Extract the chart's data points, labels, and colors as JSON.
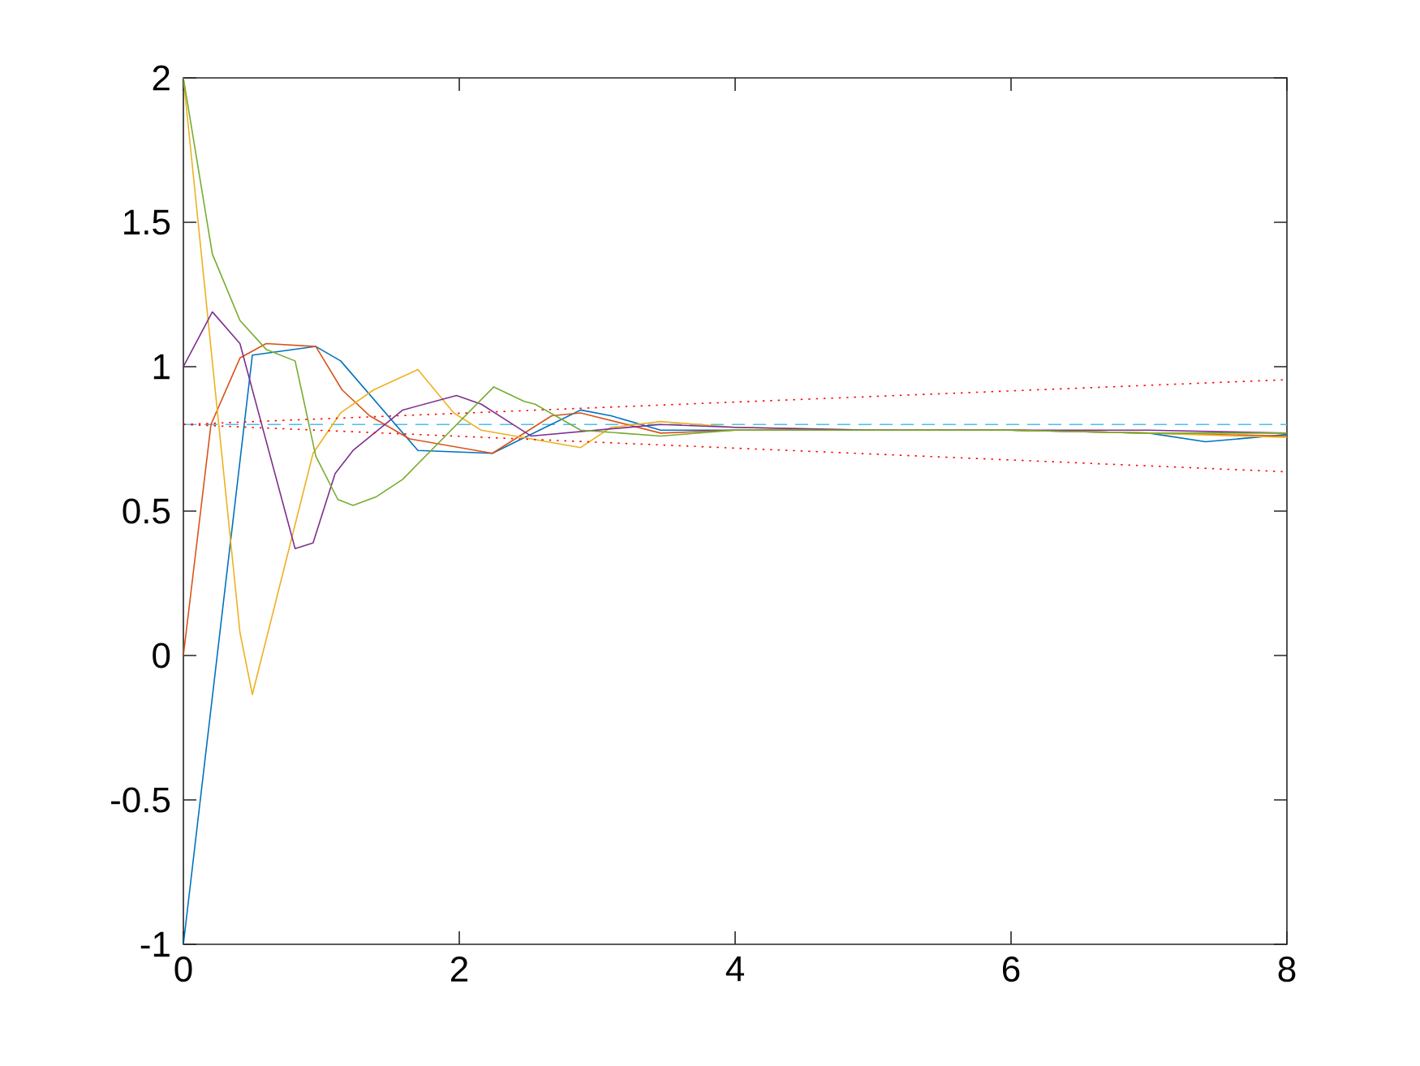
{
  "chart_data": {
    "type": "line",
    "xlim": [
      0,
      8
    ],
    "ylim": [
      -1,
      2
    ],
    "xticks": [
      0,
      2,
      4,
      6,
      8
    ],
    "yticks": [
      -1,
      -0.5,
      0,
      0.5,
      1,
      1.5,
      2
    ],
    "grid": false,
    "marker": "none",
    "series": [
      {
        "color": "#0072bd",
        "x": [
          0,
          0.5,
          0.96,
          1.14,
          1.7,
          2.24,
          2.88,
          3.1,
          3.46,
          4,
          5,
          6,
          7,
          7.41,
          8
        ],
        "values": [
          -1,
          1.04,
          1.07,
          1.02,
          0.71,
          0.7,
          0.85,
          0.83,
          0.78,
          0.78,
          0.78,
          0.78,
          0.77,
          0.74,
          0.765
        ]
      },
      {
        "color": "#d95319",
        "x": [
          0,
          0.2,
          0.41,
          0.6,
          0.96,
          1.15,
          1.35,
          1.64,
          2.24,
          2.67,
          2.88,
          3.46,
          4,
          5,
          6,
          7,
          8
        ],
        "values": [
          0,
          0.8,
          1.03,
          1.08,
          1.07,
          0.92,
          0.83,
          0.75,
          0.7,
          0.83,
          0.84,
          0.77,
          0.78,
          0.78,
          0.78,
          0.77,
          0.76
        ]
      },
      {
        "color": "#edb120",
        "x": [
          0,
          0.41,
          0.5,
          0.94,
          1.14,
          1.38,
          1.7,
          1.96,
          2.16,
          2.88,
          3.1,
          3.46,
          4,
          5,
          6,
          7,
          8
        ],
        "values": [
          2,
          0.08,
          -0.135,
          0.7,
          0.84,
          0.92,
          0.99,
          0.84,
          0.78,
          0.72,
          0.79,
          0.81,
          0.79,
          0.78,
          0.78,
          0.77,
          0.755
        ]
      },
      {
        "color": "#7e2f8e",
        "x": [
          0,
          0.21,
          0.41,
          0.81,
          0.94,
          1.1,
          1.23,
          1.59,
          1.98,
          2.16,
          2.52,
          3.46,
          4,
          5,
          6,
          7,
          8
        ],
        "values": [
          1,
          1.19,
          1.08,
          0.37,
          0.39,
          0.63,
          0.71,
          0.85,
          0.9,
          0.87,
          0.76,
          0.8,
          0.79,
          0.78,
          0.78,
          0.78,
          0.77
        ]
      },
      {
        "color": "#77ac30",
        "x": [
          0,
          0.21,
          0.41,
          0.6,
          0.81,
          0.96,
          1.12,
          1.23,
          1.4,
          1.59,
          2.25,
          2.47,
          2.55,
          2.88,
          3.46,
          4,
          5,
          6,
          7,
          8
        ],
        "values": [
          2,
          1.39,
          1.16,
          1.06,
          1.02,
          0.69,
          0.54,
          0.52,
          0.55,
          0.61,
          0.93,
          0.88,
          0.87,
          0.78,
          0.76,
          0.78,
          0.78,
          0.78,
          0.77,
          0.77
        ]
      },
      {
        "color": "#ff0000",
        "line_style": "dotted",
        "x": [
          0,
          8
        ],
        "values": [
          0.8,
          0.955
        ]
      },
      {
        "color": "#ff0000",
        "line_style": "dotted",
        "x": [
          0,
          8
        ],
        "values": [
          0.8,
          0.636
        ]
      }
    ],
    "ref_lines": [
      {
        "axis": "y",
        "value": 0.8,
        "color": "#4dbeee",
        "line_style": "dashed"
      }
    ]
  }
}
